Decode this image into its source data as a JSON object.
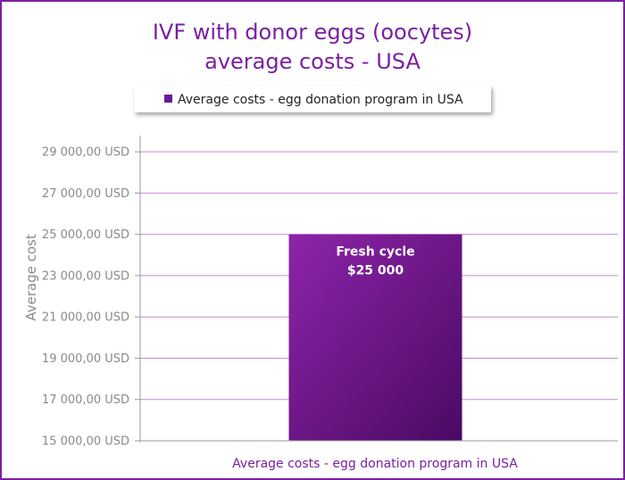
{
  "chart_data": {
    "type": "bar",
    "title": [
      "IVF with donor eggs (oocytes)",
      "average costs - USA"
    ],
    "legend": {
      "label": "Average costs - egg donation program in USA",
      "placement": "top-center",
      "color": "#6a1b9a"
    },
    "ylabel": "Average cost",
    "xlabel": "Average costs - egg donation program in USA",
    "ylim": [
      15000,
      30000
    ],
    "yticks": [
      15000,
      17000,
      19000,
      21000,
      23000,
      25000,
      27000,
      29000
    ],
    "ytick_labels": [
      "15 000,00 USD",
      "17 000,00 USD",
      "19 000,00 USD",
      "21 000,00 USD",
      "23 000,00 USD",
      "25 000,00 USD",
      "27 000,00 USD",
      "29 000,00 USD"
    ],
    "grid": true,
    "grid_color": "#cc88dd",
    "series": [
      {
        "name": "Average costs - egg donation program in USA",
        "values": [
          25000
        ],
        "data_labels": [
          [
            "Fresh cycle",
            "$25 000"
          ]
        ],
        "color_light": "#8e24aa",
        "color_dark": "#4a0a63"
      }
    ]
  }
}
